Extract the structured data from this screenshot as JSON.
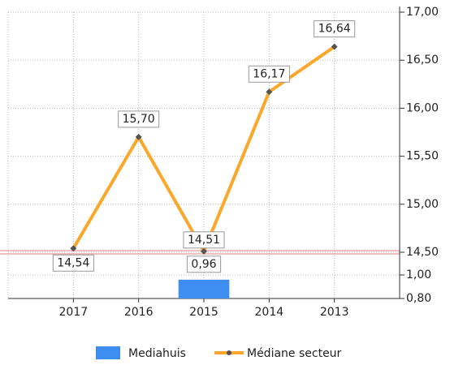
{
  "chart_data": {
    "type": "bar-line",
    "categories": [
      "2017",
      "2016",
      "2015",
      "2014",
      "2013"
    ],
    "series": [
      {
        "name": "Mediahuis",
        "type": "bar",
        "color": "#3d8ef0",
        "values": [
          null,
          null,
          0.96,
          null,
          null
        ],
        "value_labels": [
          null,
          null,
          "0,96",
          null,
          null
        ]
      },
      {
        "name": "Médiane secteur",
        "type": "line",
        "color": "#fba72a",
        "values": [
          14.54,
          15.7,
          14.51,
          16.17,
          16.64
        ],
        "value_labels": [
          "14,54",
          "15,70",
          "14,51",
          "16,17",
          "16,64"
        ]
      }
    ],
    "axis_break": true,
    "ylim_lower": [
      0.8,
      1.0
    ],
    "ylim_upper": [
      14.5,
      17.0
    ],
    "yticks": [
      {
        "value": 0.8,
        "label": "0,80"
      },
      {
        "value": 1.0,
        "label": "1,00"
      },
      {
        "value": 14.5,
        "label": "14,50"
      },
      {
        "value": 15.0,
        "label": "15,00"
      },
      {
        "value": 15.5,
        "label": "15,50"
      },
      {
        "value": 16.0,
        "label": "16,00"
      },
      {
        "value": 16.5,
        "label": "16,50"
      },
      {
        "value": 17.0,
        "label": "17,00"
      }
    ],
    "grid": true,
    "legend": "bottom"
  }
}
